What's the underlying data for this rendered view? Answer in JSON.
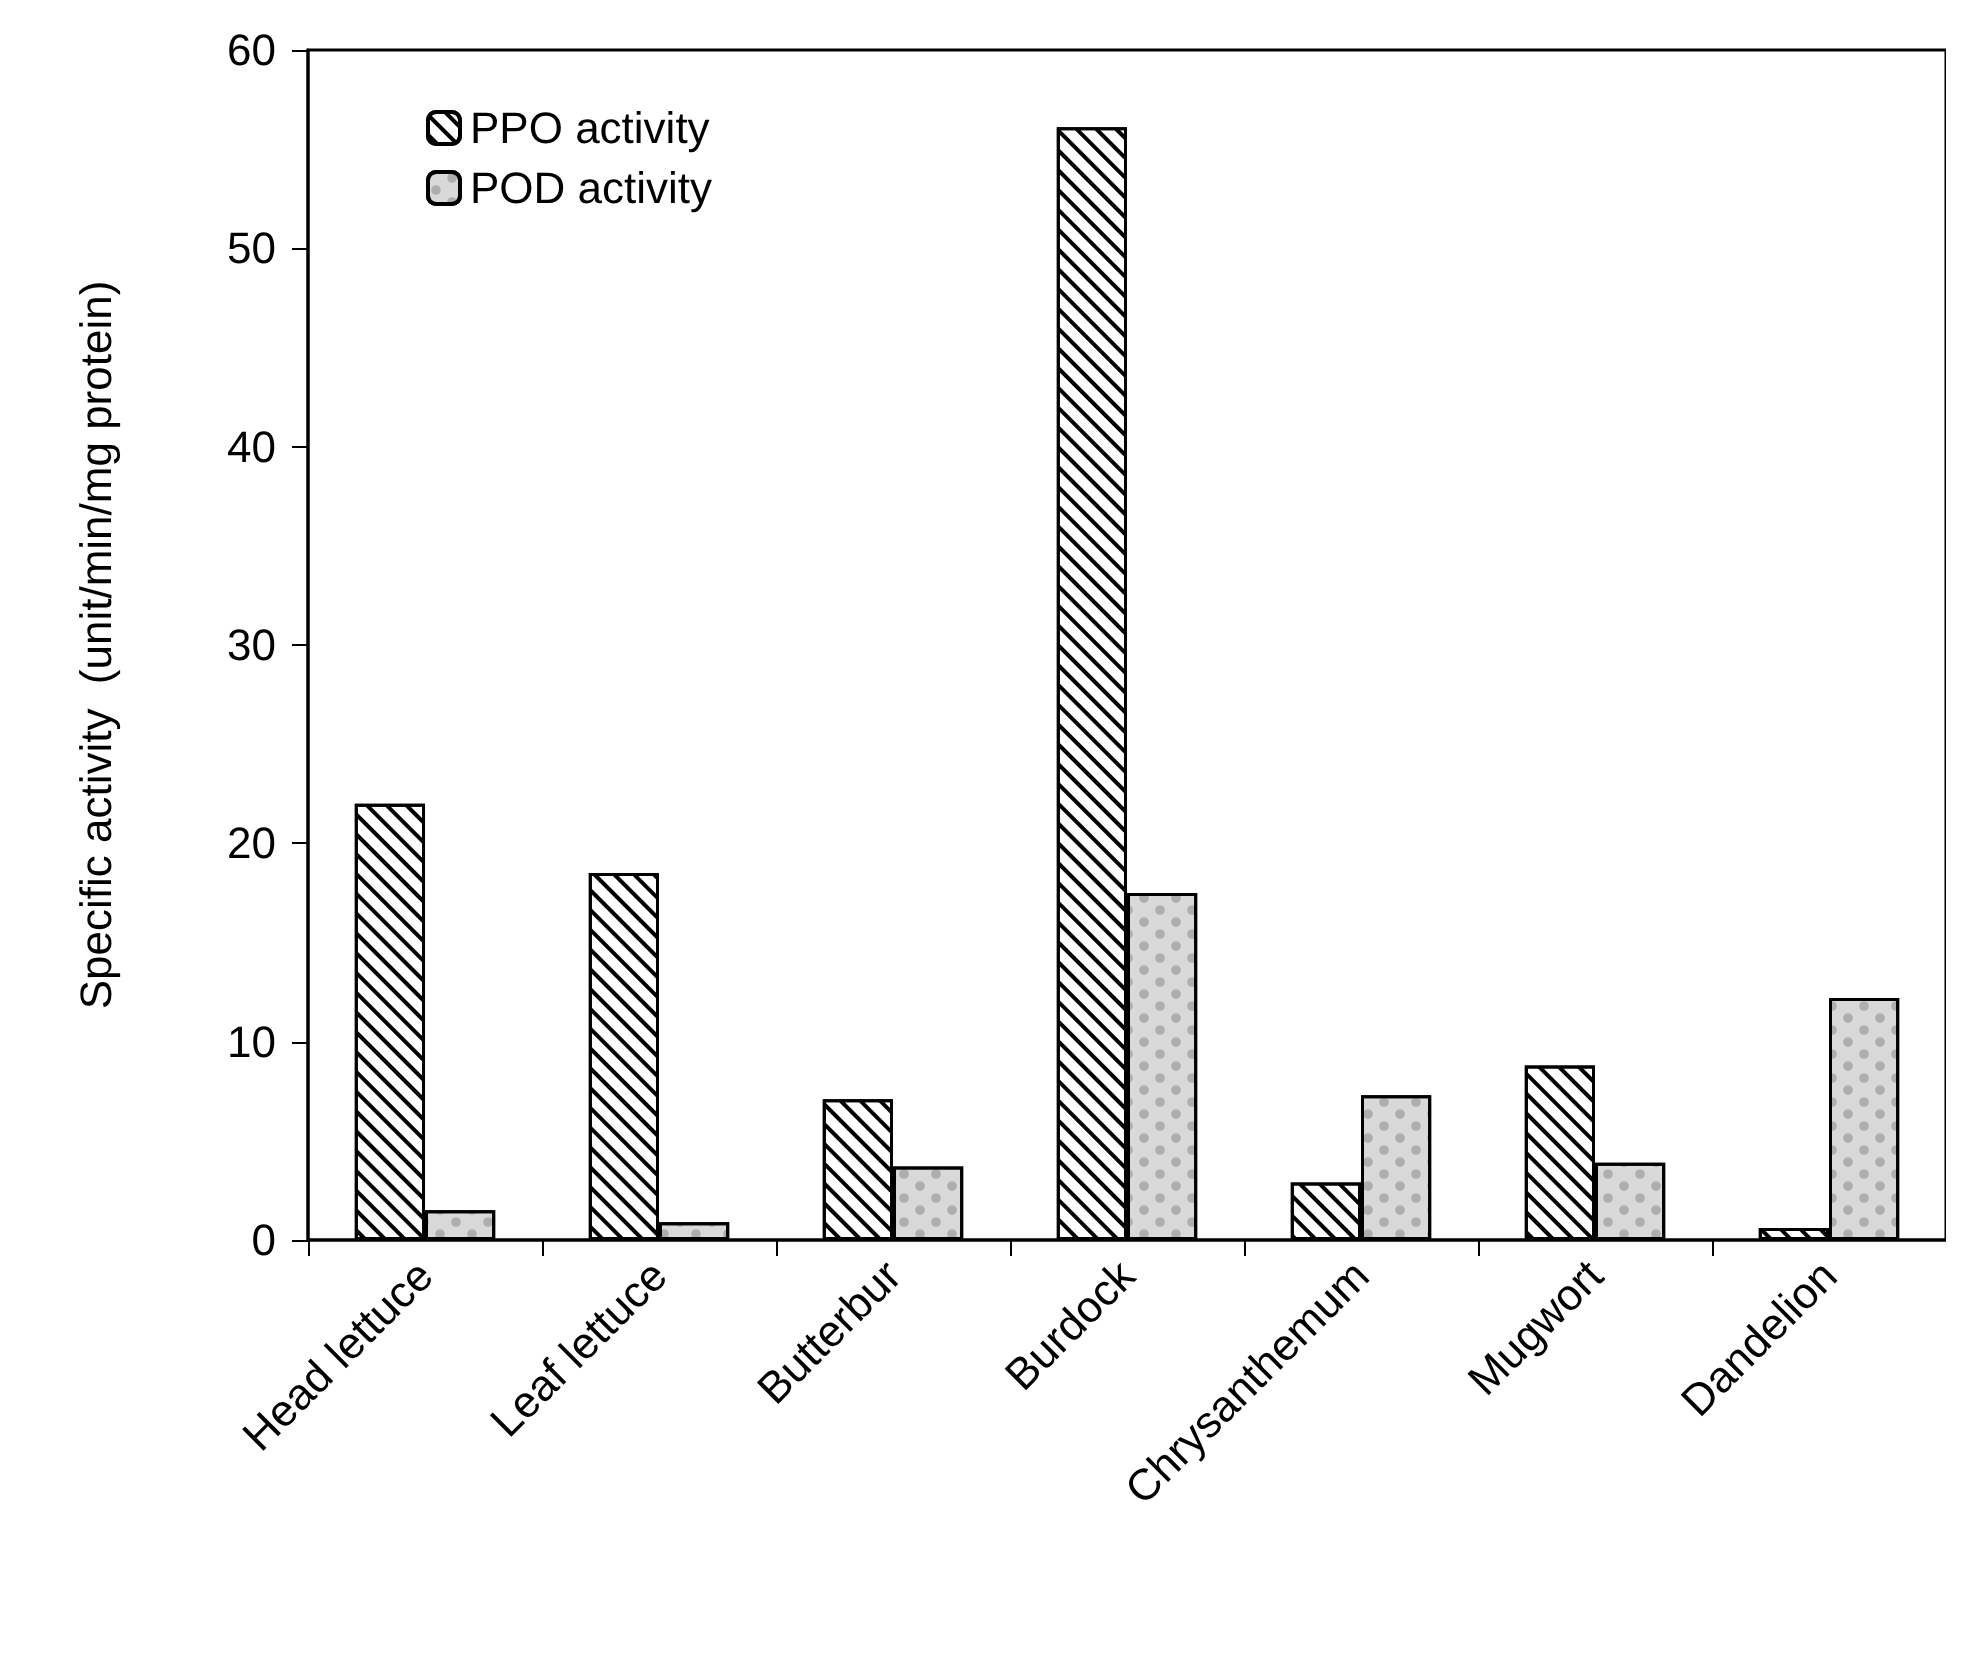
{
  "chart_data": {
    "type": "bar",
    "ylabel": "Specific activity  (unit/min/mg protein)",
    "categories": [
      "Head lettuce",
      "Leaf lettuce",
      "Butterbur",
      "Burdock",
      "Chrysanthemum",
      "Mugwort",
      "Dandelion"
    ],
    "series": [
      {
        "name": "PPO activity",
        "color": "#000000",
        "values": [
          22.0,
          18.5,
          7.1,
          56.1,
          2.9,
          8.8,
          0.6
        ]
      },
      {
        "name": "POD activity",
        "color": "#d9d9d9",
        "values": [
          1.5,
          0.9,
          3.7,
          17.5,
          7.3,
          3.9,
          12.2
        ]
      }
    ],
    "ylim": [
      0,
      60
    ],
    "yticks": [
      0,
      10,
      20,
      30,
      40,
      50,
      60
    ],
    "grid": false,
    "legend": "top left"
  }
}
